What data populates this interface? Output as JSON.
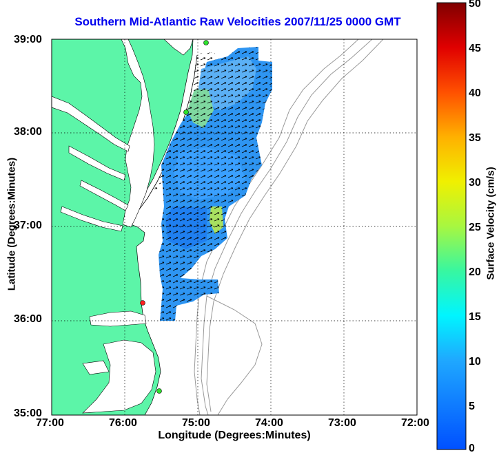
{
  "title": "Southern Mid-Atlantic Raw Velocities 2007/11/25 0000 GMT",
  "x_axis": {
    "label": "Longitude (Degrees:Minutes)",
    "ticks": [
      "77:00",
      "76:00",
      "75:00",
      "74:00",
      "73:00",
      "72:00"
    ]
  },
  "y_axis": {
    "label": "Latitude (Degrees:Minutes)",
    "ticks": [
      "39:00",
      "38:00",
      "37:00",
      "36:00",
      "35:00"
    ]
  },
  "colorbar": {
    "label": "Surface Velocity (cm/s)",
    "ticks": [
      "50",
      "45",
      "40",
      "35",
      "30",
      "25",
      "20",
      "15",
      "10",
      "5",
      "0"
    ],
    "range": [
      0,
      50
    ]
  },
  "colors": {
    "land": "#5cf5a8",
    "water": "#ffffff",
    "title": "#0000ee",
    "coverage": "#2f98f0",
    "station": "#2ee02e",
    "station_alert": "#ff2020"
  },
  "map": {
    "lon_range": [
      -77,
      -72
    ],
    "lat_range": [
      35,
      39
    ],
    "grid": "dotted"
  }
}
